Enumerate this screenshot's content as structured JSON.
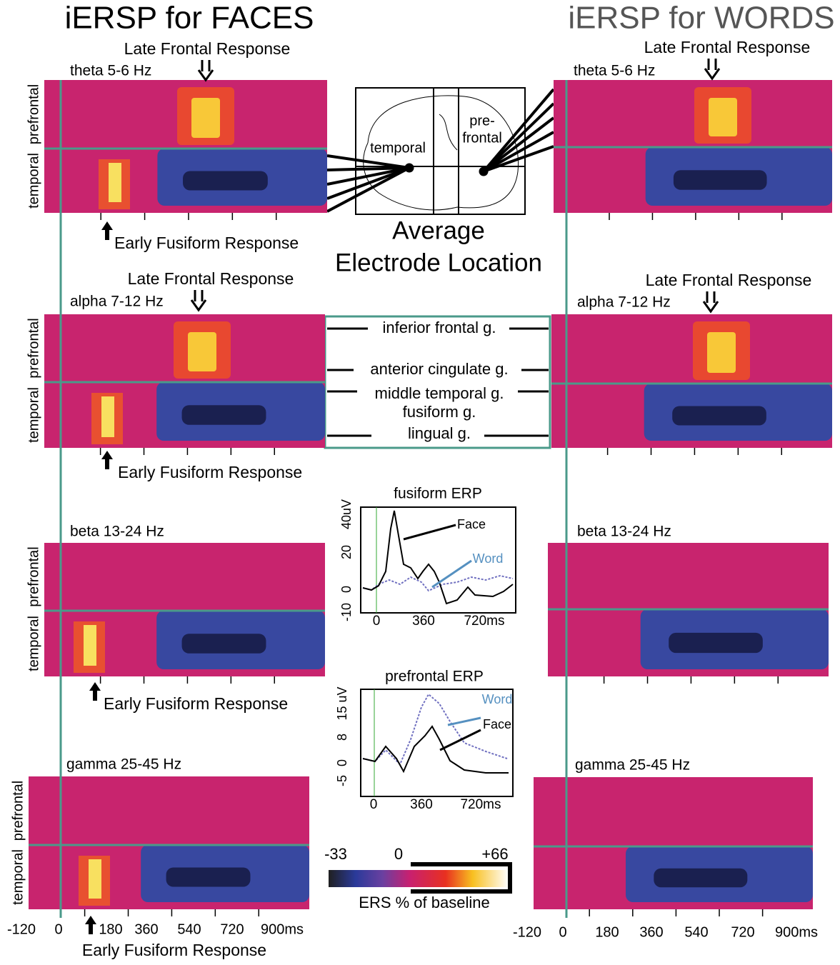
{
  "faces": {
    "title": "iERSP for FACES",
    "panels": [
      {
        "band": "theta 5-6 Hz",
        "late": "Late Frontal Response",
        "early": "Early Fusiform Response"
      },
      {
        "band": "alpha 7-12 Hz",
        "late": "Late Frontal Response",
        "early": "Early Fusiform Response"
      },
      {
        "band": "beta 13-24 Hz",
        "early": "Early Fusiform Response"
      },
      {
        "band": "gamma 25-45 Hz"
      }
    ],
    "rows": [
      "prefrontal",
      "temporal"
    ],
    "xticks": [
      "-120",
      "0",
      "180",
      "360",
      "540",
      "720",
      "900ms"
    ],
    "xlabel": "Early Fusiform Response"
  },
  "words": {
    "title": "iERSP for WORDS",
    "panels": [
      {
        "band": "theta 5-6 Hz",
        "late": "Late Frontal Response"
      },
      {
        "band": "alpha 7-12 Hz",
        "late": "Late Frontal Response"
      },
      {
        "band": "beta 13-24 Hz"
      },
      {
        "band": "gamma 25-45 Hz"
      }
    ],
    "xticks": [
      "-120",
      "0",
      "180",
      "360",
      "540",
      "720",
      "900ms"
    ]
  },
  "electrode": {
    "labels": [
      "temporal",
      "pre-",
      "frontal"
    ],
    "title": [
      "Average",
      "Electrode Location"
    ]
  },
  "regions": [
    "inferior frontal g.",
    "anterior cingulate g.",
    "middle temporal g.",
    "fusiform g.",
    "lingual g."
  ],
  "erp": [
    {
      "title": "fusiform ERP",
      "yticks": [
        "40uV",
        "20",
        "0",
        "-10"
      ],
      "xticks": [
        "0",
        "360",
        "720ms"
      ],
      "legend": [
        "Face",
        "Word"
      ]
    },
    {
      "title": "prefrontal ERP",
      "yticks": [
        "15 uV",
        "8",
        "0",
        "-5"
      ],
      "xticks": [
        "0",
        "360",
        "720ms"
      ],
      "legend": [
        "Word",
        "Face"
      ]
    }
  ],
  "colorbar": {
    "ticks": [
      "-33",
      "0",
      "+66"
    ],
    "label": "ERS % of baseline"
  }
}
